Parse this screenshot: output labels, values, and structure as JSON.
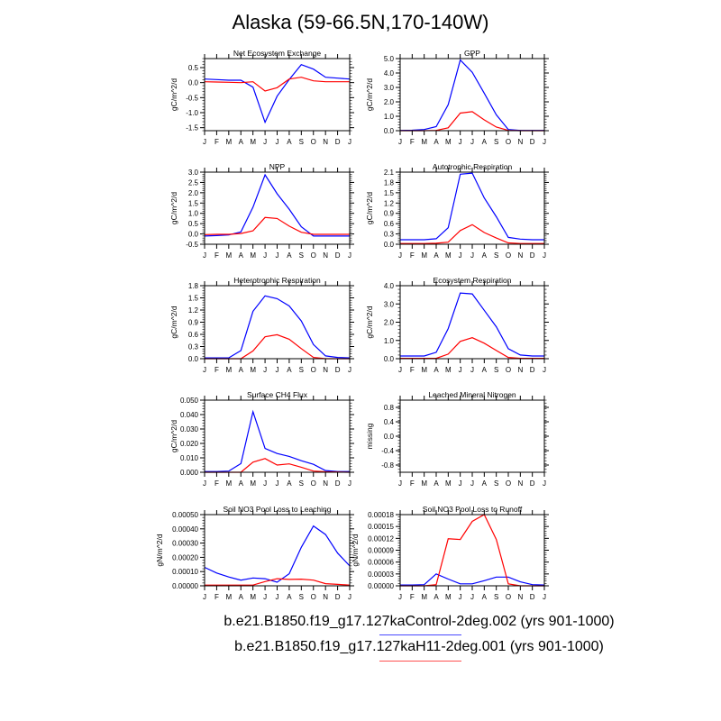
{
  "title": "Alaska (59-66.5N,170-140W)",
  "colors": {
    "control": "#0000ff",
    "h11": "#ff0000"
  },
  "legend": [
    {
      "label": "b.e21.B1850.f19_g17.127kaControl-2deg.002 (yrs 901-1000)",
      "color": "#0000ff"
    },
    {
      "label": "b.e21.B1850.f19_g17.127kaH11-2deg.001 (yrs 901-1000)",
      "color": "#ff0000"
    }
  ],
  "chart_data": [
    {
      "type": "line",
      "title": "Net Ecosystem Exchange",
      "ylabel": "gC/m^2/d",
      "ylim": [
        -1.6,
        0.8
      ],
      "yticks": [
        -1.5,
        -1.0,
        -0.5,
        0.0,
        0.5
      ],
      "ytick_labels": [
        "-1.5",
        "-1.0",
        "-0.5",
        "0.0",
        "0.5"
      ],
      "x": [
        "J",
        "F",
        "M",
        "A",
        "M",
        "J",
        "J",
        "A",
        "S",
        "O",
        "N",
        "D",
        "J"
      ],
      "series": [
        {
          "name": "Control",
          "values": [
            0.12,
            0.1,
            0.08,
            0.08,
            -0.15,
            -1.32,
            -0.45,
            0.1,
            0.6,
            0.45,
            0.18,
            0.15,
            0.12
          ]
        },
        {
          "name": "H11",
          "values": [
            0.03,
            0.02,
            0.01,
            0.0,
            0.03,
            -0.28,
            -0.17,
            0.12,
            0.18,
            0.06,
            0.03,
            0.03,
            0.03
          ]
        }
      ]
    },
    {
      "type": "line",
      "title": "GPP",
      "ylabel": "gC/m^2/d",
      "ylim": [
        0,
        5
      ],
      "yticks": [
        0,
        1,
        2,
        3,
        4,
        5
      ],
      "ytick_labels": [
        "0.0",
        "1.0",
        "2.0",
        "3.0",
        "4.0",
        "5.0"
      ],
      "x": [
        "J",
        "F",
        "M",
        "A",
        "M",
        "J",
        "J",
        "A",
        "S",
        "O",
        "N",
        "D",
        "J"
      ],
      "series": [
        {
          "name": "Control",
          "values": [
            0.02,
            0.03,
            0.08,
            0.28,
            1.8,
            4.9,
            4.05,
            2.6,
            1.1,
            0.08,
            0.02,
            0.02,
            0.02
          ]
        },
        {
          "name": "H11",
          "values": [
            0,
            0,
            0,
            0.02,
            0.2,
            1.22,
            1.32,
            0.75,
            0.25,
            0.02,
            0,
            0,
            0
          ]
        }
      ]
    },
    {
      "type": "line",
      "title": "NPP",
      "ylabel": "gC/m^2/d",
      "ylim": [
        -0.5,
        3
      ],
      "yticks": [
        -0.5,
        0,
        0.5,
        1,
        1.5,
        2,
        2.5,
        3
      ],
      "ytick_labels": [
        "-0.5",
        "0.0",
        "0.5",
        "1.0",
        "1.5",
        "2.0",
        "2.5",
        "3.0"
      ],
      "x": [
        "J",
        "F",
        "M",
        "A",
        "M",
        "J",
        "J",
        "A",
        "S",
        "O",
        "N",
        "D",
        "J"
      ],
      "series": [
        {
          "name": "Control",
          "values": [
            -0.1,
            -0.08,
            -0.05,
            0.1,
            1.3,
            2.87,
            1.95,
            1.2,
            0.35,
            -0.1,
            -0.1,
            -0.1,
            -0.1
          ]
        },
        {
          "name": "H11",
          "values": [
            -0.03,
            -0.02,
            -0.02,
            0.02,
            0.15,
            0.8,
            0.75,
            0.38,
            0.08,
            -0.02,
            -0.02,
            -0.02,
            -0.02
          ]
        }
      ]
    },
    {
      "type": "line",
      "title": "Autotrophic Respiration",
      "ylabel": "gC/m^2/d",
      "ylim": [
        0,
        2.1
      ],
      "yticks": [
        0,
        0.3,
        0.6,
        0.9,
        1.2,
        1.5,
        1.8,
        2.1
      ],
      "ytick_labels": [
        "0.0",
        "0.3",
        "0.6",
        "0.9",
        "1.2",
        "1.5",
        "1.8",
        "2.1"
      ],
      "x": [
        "J",
        "F",
        "M",
        "A",
        "M",
        "J",
        "J",
        "A",
        "S",
        "O",
        "N",
        "D",
        "J"
      ],
      "series": [
        {
          "name": "Control",
          "values": [
            0.13,
            0.13,
            0.13,
            0.16,
            0.48,
            2.04,
            2.07,
            1.35,
            0.8,
            0.2,
            0.15,
            0.13,
            0.13
          ]
        },
        {
          "name": "H11",
          "values": [
            0.02,
            0.02,
            0.02,
            0.03,
            0.06,
            0.4,
            0.57,
            0.34,
            0.18,
            0.04,
            0.02,
            0.02,
            0.02
          ]
        }
      ]
    },
    {
      "type": "line",
      "title": "Heterotrophic Respiration",
      "ylabel": "gC/m^2/d",
      "ylim": [
        0,
        1.8
      ],
      "yticks": [
        0,
        0.3,
        0.6,
        0.9,
        1.2,
        1.5,
        1.8
      ],
      "ytick_labels": [
        "0.0",
        "0.3",
        "0.6",
        "0.9",
        "1.2",
        "1.5",
        "1.8"
      ],
      "x": [
        "J",
        "F",
        "M",
        "A",
        "M",
        "J",
        "J",
        "A",
        "S",
        "O",
        "N",
        "D",
        "J"
      ],
      "series": [
        {
          "name": "Control",
          "values": [
            0.02,
            0.02,
            0.02,
            0.2,
            1.17,
            1.55,
            1.48,
            1.3,
            0.93,
            0.35,
            0.07,
            0.03,
            0.02
          ]
        },
        {
          "name": "H11",
          "values": [
            0,
            0,
            0,
            0,
            0.19,
            0.54,
            0.59,
            0.48,
            0.25,
            0.03,
            0,
            0,
            0
          ]
        }
      ]
    },
    {
      "type": "line",
      "title": "Ecosystem Respiration",
      "ylabel": "gC/m^2/d",
      "ylim": [
        0,
        4
      ],
      "yticks": [
        0,
        1,
        2,
        3,
        4
      ],
      "ytick_labels": [
        "0.0",
        "1.0",
        "2.0",
        "3.0",
        "4.0"
      ],
      "x": [
        "J",
        "F",
        "M",
        "A",
        "M",
        "J",
        "J",
        "A",
        "S",
        "O",
        "N",
        "D",
        "J"
      ],
      "series": [
        {
          "name": "Control",
          "values": [
            0.15,
            0.15,
            0.15,
            0.35,
            1.65,
            3.6,
            3.55,
            2.65,
            1.75,
            0.55,
            0.2,
            0.15,
            0.15
          ]
        },
        {
          "name": "H11",
          "values": [
            0.02,
            0.02,
            0.02,
            0.02,
            0.25,
            0.95,
            1.15,
            0.85,
            0.45,
            0.07,
            0.02,
            0.02,
            0.02
          ]
        }
      ]
    },
    {
      "type": "line",
      "title": "Surface CH4 Flux",
      "ylabel": "gC/m^2/d",
      "ylim": [
        0,
        0.05
      ],
      "yticks": [
        0,
        0.01,
        0.02,
        0.03,
        0.04,
        0.05
      ],
      "ytick_labels": [
        "0.000",
        "0.010",
        "0.020",
        "0.030",
        "0.040",
        "0.050"
      ],
      "x": [
        "J",
        "F",
        "M",
        "A",
        "M",
        "J",
        "J",
        "A",
        "S",
        "O",
        "N",
        "D",
        "J"
      ],
      "series": [
        {
          "name": "Control",
          "values": [
            0.0005,
            0.0005,
            0.0008,
            0.006,
            0.042,
            0.0165,
            0.013,
            0.011,
            0.008,
            0.0055,
            0.0012,
            0.0005,
            0.0005
          ]
        },
        {
          "name": "H11",
          "values": [
            0,
            0,
            0,
            0,
            0.007,
            0.0095,
            0.005,
            0.0058,
            0.0035,
            0.0008,
            0.0003,
            0.0002,
            0
          ]
        }
      ]
    },
    {
      "type": "line",
      "title": "Leached Mineral Nitrogen",
      "ylabel": "missing",
      "ylim": [
        -1,
        1
      ],
      "yticks": [
        -0.8,
        -0.4,
        0,
        0.4,
        0.8
      ],
      "ytick_labels": [
        "-0.8",
        "-0.4",
        "0.0",
        "0.4",
        "0.8"
      ],
      "x": [
        "J",
        "F",
        "M",
        "A",
        "M",
        "J",
        "J",
        "A",
        "S",
        "O",
        "N",
        "D",
        "J"
      ],
      "series": []
    },
    {
      "type": "line",
      "title": "Soil NO3 Pool Loss to Leaching",
      "ylabel": "gN/m^2/d",
      "ylim": [
        0,
        0.0005
      ],
      "yticks": [
        0,
        0.0001,
        0.0002,
        0.0003,
        0.0004,
        0.0005
      ],
      "ytick_labels": [
        "0.00000",
        "0.00010",
        "0.00020",
        "0.00030",
        "0.00040",
        "0.00050"
      ],
      "x": [
        "J",
        "F",
        "M",
        "A",
        "M",
        "J",
        "J",
        "A",
        "S",
        "O",
        "N",
        "D",
        "J"
      ],
      "series": [
        {
          "name": "Control",
          "values": [
            0.00013,
            9e-05,
            6.2e-05,
            4e-05,
            5.5e-05,
            5e-05,
            2.5e-05,
            8.5e-05,
            0.00027,
            0.00042,
            0.00036,
            0.00023,
            0.00014
          ]
        },
        {
          "name": "H11",
          "values": [
            5e-06,
            5e-06,
            5e-06,
            5e-06,
            5e-06,
            3e-05,
            5e-05,
            4.5e-05,
            4.7e-05,
            4e-05,
            1.5e-05,
            1e-05,
            5e-06
          ]
        }
      ]
    },
    {
      "type": "line",
      "title": "Soil NO3 Pool Loss to Runoff",
      "ylabel": "gN/m^2/d",
      "ylim": [
        0,
        0.00018
      ],
      "yticks": [
        0,
        3e-05,
        6e-05,
        9e-05,
        0.00012,
        0.00015,
        0.00018
      ],
      "ytick_labels": [
        "0.00000",
        "0.00003",
        "0.00006",
        "0.00009",
        "0.00012",
        "0.00015",
        "0.00018"
      ],
      "x": [
        "J",
        "F",
        "M",
        "A",
        "M",
        "J",
        "J",
        "A",
        "S",
        "O",
        "N",
        "D",
        "J"
      ],
      "series": [
        {
          "name": "Control",
          "values": [
            2e-06,
            2e-06,
            3e-06,
            3e-05,
            1.7e-05,
            5e-06,
            5e-06,
            1.3e-05,
            2.2e-05,
            2.2e-05,
            1e-05,
            3e-06,
            2e-06
          ]
        },
        {
          "name": "H11",
          "values": [
            0,
            0,
            0,
            3e-06,
            0.000119,
            0.000117,
            0.000163,
            0.00018,
            0.000117,
            5e-06,
            0,
            0,
            0
          ]
        }
      ]
    }
  ]
}
